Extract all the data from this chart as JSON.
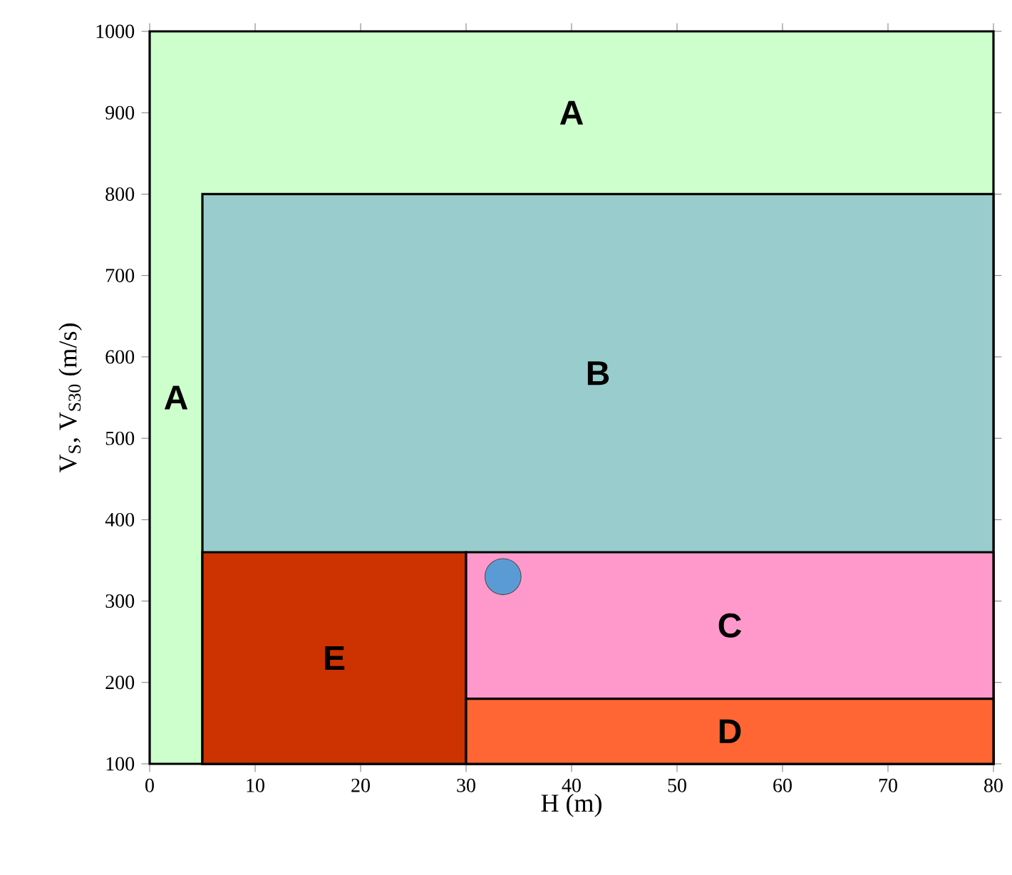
{
  "chart_data": {
    "type": "area",
    "xlabel": "H (m)",
    "ylabel": "V$_{S}$, V$_{S30}$ (m/s)",
    "xlim": [
      0,
      80
    ],
    "ylim": [
      100,
      1000
    ],
    "xticks": [
      0,
      10,
      20,
      30,
      40,
      50,
      60,
      70,
      80
    ],
    "yticks": [
      100,
      200,
      300,
      400,
      500,
      600,
      700,
      800,
      900,
      1000
    ],
    "annotations": [
      "A"
    ],
    "series": [
      {
        "name": "A",
        "color": "#ccffcc",
        "x": [
          0,
          80
        ],
        "values": [
          1000,
          1000
        ]
      },
      {
        "name": "B",
        "color": "#99cccc",
        "x": [
          5,
          80
        ],
        "values": [
          800,
          800
        ]
      },
      {
        "name": "E",
        "color": "#cc3300",
        "x": [
          5,
          30
        ],
        "values": [
          360,
          360
        ]
      },
      {
        "name": "C",
        "color": "#ff99cc",
        "x": [
          30,
          80
        ],
        "values": [
          360,
          360
        ]
      },
      {
        "name": "D",
        "color": "#ff6633",
        "x": [
          30,
          80
        ],
        "values": [
          180,
          180
        ]
      },
      {
        "type": "scatter",
        "color": "#5b9bd5",
        "marker": "circle",
        "x": [
          33.5
        ],
        "values": [
          330
        ]
      }
    ]
  }
}
